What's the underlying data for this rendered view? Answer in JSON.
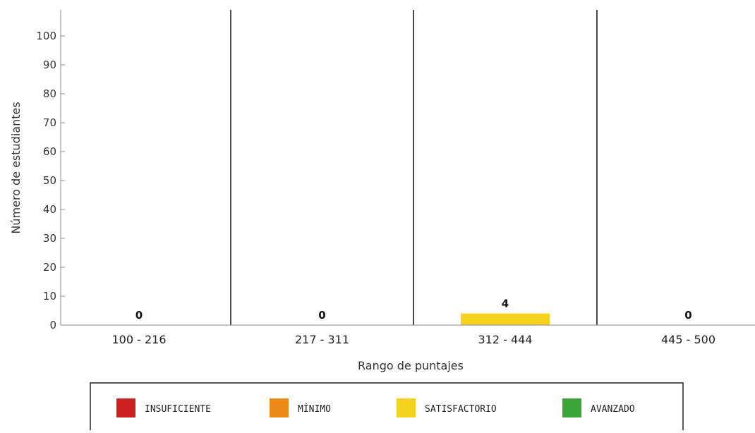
{
  "chart_data": {
    "type": "bar",
    "xlabel": "Rango de puntajes",
    "ylabel": "Número de estudiantes",
    "categories": [
      "100 - 216",
      "217 - 311",
      "312 - 444",
      "445 - 500"
    ],
    "values": [
      0,
      0,
      4,
      0
    ],
    "bar_colors": [
      "#cc2222",
      "#ee8a1a",
      "#f5d21c",
      "#3aa63a"
    ],
    "ylim": [
      0,
      105
    ],
    "yticks": [
      0,
      10,
      20,
      30,
      40,
      50,
      60,
      70,
      80,
      90,
      100
    ],
    "grid": false,
    "legend_position": "bottom",
    "legend": [
      {
        "label": "INSUFICIENTE",
        "color": "#cc2222"
      },
      {
        "label": "MÍNIMO",
        "color": "#ee8a1a"
      },
      {
        "label": "SATISFACTORIO",
        "color": "#f5d21c"
      },
      {
        "label": "AVANZADO",
        "color": "#3aa63a"
      }
    ]
  }
}
